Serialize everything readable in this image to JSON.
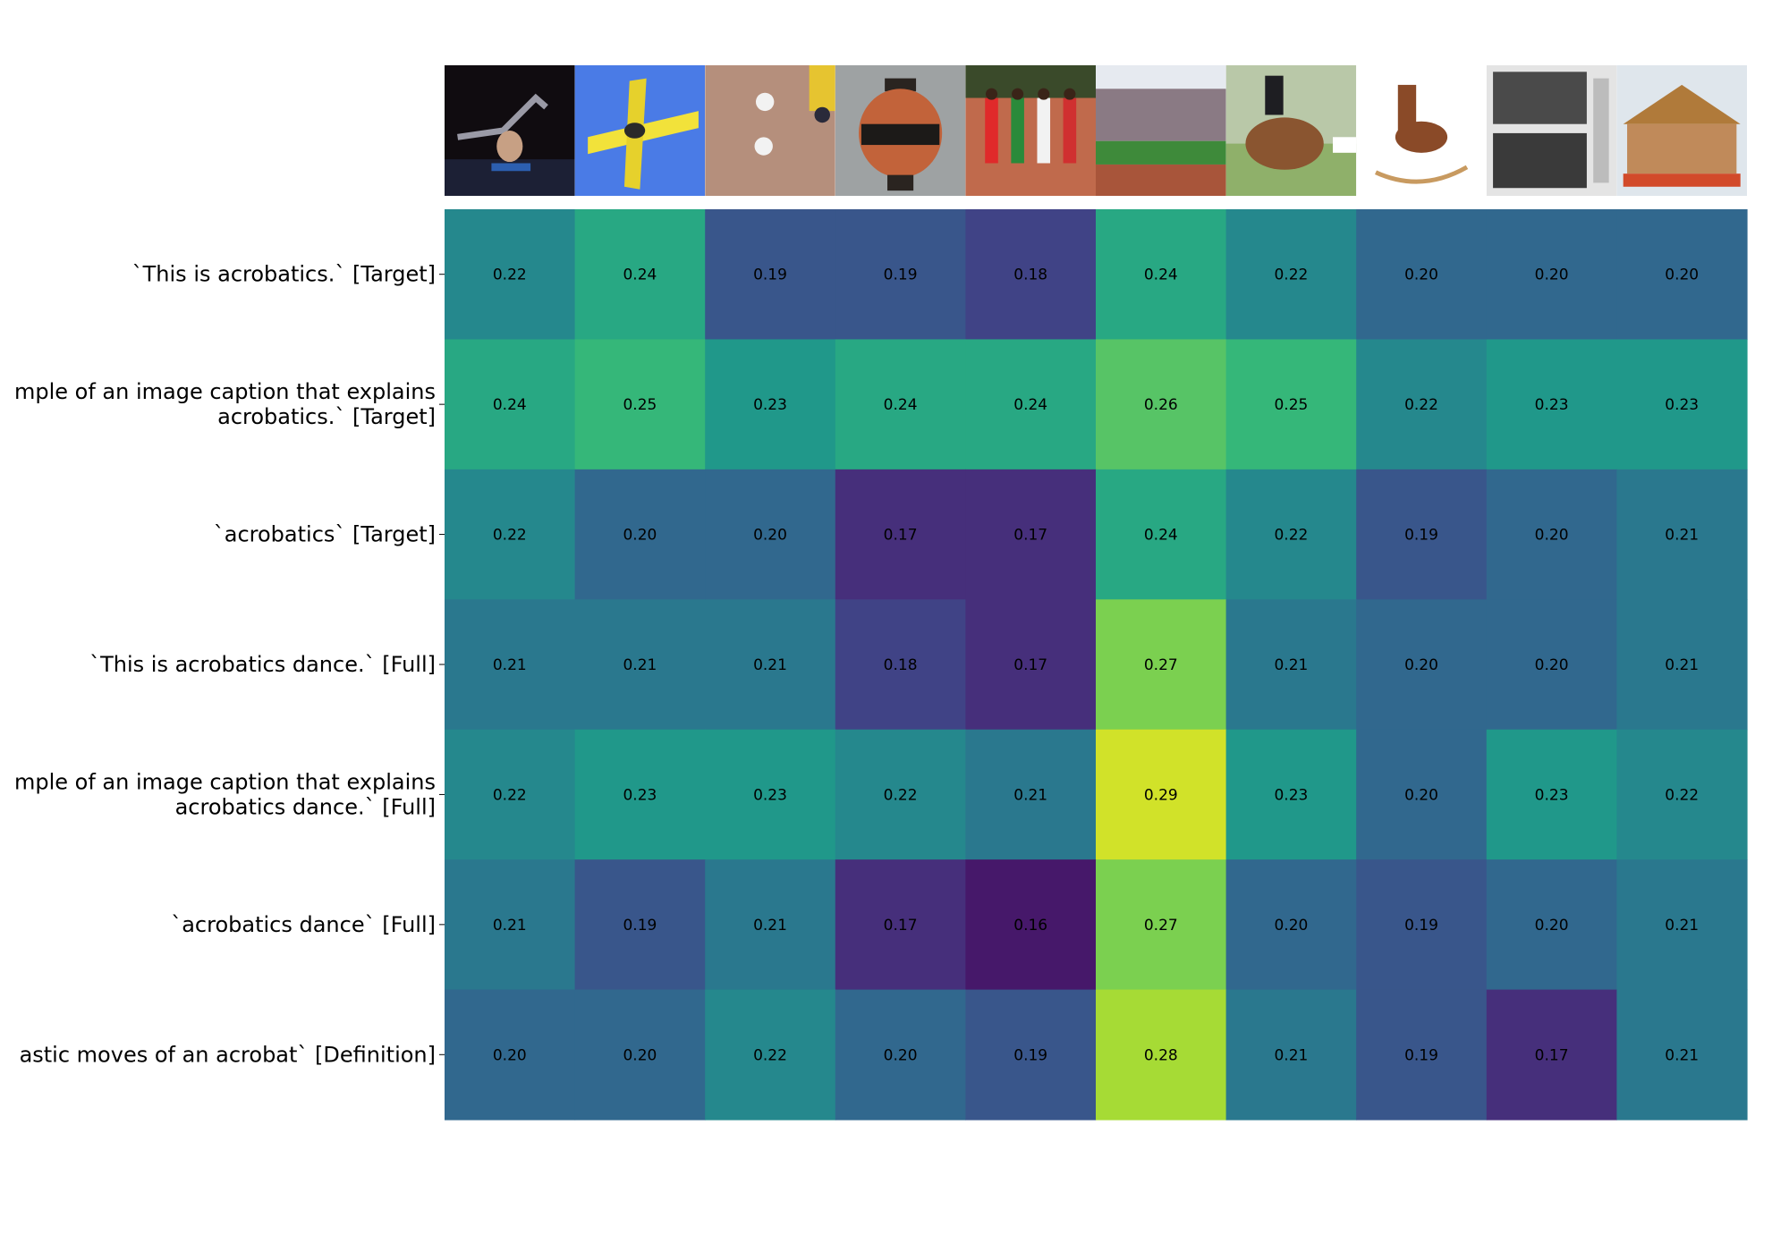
{
  "chart_data": {
    "type": "heatmap",
    "title": "",
    "xlabel": "",
    "ylabel": "",
    "colormap": "viridis",
    "value_range": [
      0.15,
      0.3
    ],
    "columns": [
      {
        "image": "acrobat-performer-thumbnail"
      },
      {
        "image": "yellow-airplane-thumbnail"
      },
      {
        "image": "baseball-players-thumbnail"
      },
      {
        "image": "greek-amphora-vase-thumbnail"
      },
      {
        "image": "track-runners-thumbnail"
      },
      {
        "image": "stadium-track-thumbnail"
      },
      {
        "image": "show-jumping-horse-thumbnail"
      },
      {
        "image": "rocking-horse-toy-thumbnail"
      },
      {
        "image": "vintage-newspaper-photos-thumbnail"
      },
      {
        "image": "carousel-thumbnail"
      }
    ],
    "rows": [
      {
        "label_lines": [
          "`This is acrobatics.` [Target]"
        ],
        "values": [
          0.22,
          0.24,
          0.19,
          0.19,
          0.18,
          0.24,
          0.22,
          0.2,
          0.2,
          0.2
        ]
      },
      {
        "label_lines": [
          "mple of an image caption that explains",
          "acrobatics.` [Target]"
        ],
        "values": [
          0.24,
          0.25,
          0.23,
          0.24,
          0.24,
          0.26,
          0.25,
          0.22,
          0.23,
          0.23
        ]
      },
      {
        "label_lines": [
          "`acrobatics` [Target]"
        ],
        "values": [
          0.22,
          0.2,
          0.2,
          0.17,
          0.17,
          0.24,
          0.22,
          0.19,
          0.2,
          0.21
        ]
      },
      {
        "label_lines": [
          "`This is acrobatics dance.` [Full]"
        ],
        "values": [
          0.21,
          0.21,
          0.21,
          0.18,
          0.17,
          0.27,
          0.21,
          0.2,
          0.2,
          0.21
        ]
      },
      {
        "label_lines": [
          "mple of an image caption that explains",
          "acrobatics dance.` [Full]"
        ],
        "values": [
          0.22,
          0.23,
          0.23,
          0.22,
          0.21,
          0.29,
          0.23,
          0.2,
          0.23,
          0.22
        ]
      },
      {
        "label_lines": [
          "`acrobatics dance` [Full]"
        ],
        "values": [
          0.21,
          0.19,
          0.21,
          0.17,
          0.16,
          0.27,
          0.2,
          0.19,
          0.2,
          0.21
        ]
      },
      {
        "label_lines": [
          "astic moves of an acrobat` [Definition]"
        ],
        "values": [
          0.2,
          0.2,
          0.22,
          0.2,
          0.19,
          0.28,
          0.21,
          0.19,
          0.17,
          0.21
        ]
      }
    ]
  }
}
